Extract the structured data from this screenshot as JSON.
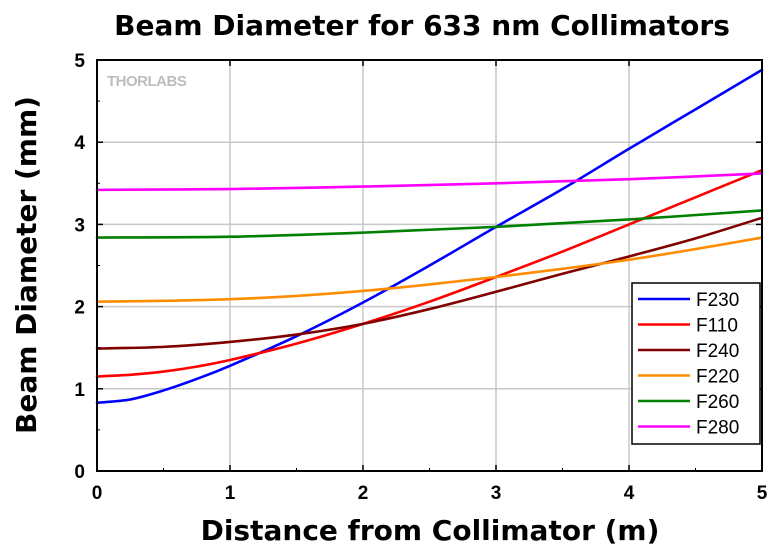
{
  "watermark": "THORLABS",
  "chart_data": {
    "type": "line",
    "title": "Beam Diameter for 633 nm Collimators",
    "xlabel": "Distance from Collimator (m)",
    "ylabel": "Beam Diameter (mm)",
    "xlim": [
      0,
      5
    ],
    "ylim": [
      0,
      5
    ],
    "xticks": [
      "0",
      "1",
      "2",
      "3",
      "4",
      "5"
    ],
    "yticks": [
      "0",
      "1",
      "2",
      "3",
      "4",
      "5"
    ],
    "grid": true,
    "legend_position": "bottom-right",
    "series": [
      {
        "name": "F230",
        "color": "#0000ff",
        "x": [
          0,
          0.25,
          0.5,
          0.75,
          1,
          1.5,
          2,
          2.5,
          3,
          3.5,
          4,
          4.5,
          5
        ],
        "y": [
          0.83,
          0.87,
          0.98,
          1.12,
          1.28,
          1.64,
          2.05,
          2.5,
          2.97,
          3.43,
          3.92,
          4.4,
          4.88
        ]
      },
      {
        "name": "F110",
        "color": "#ff0000",
        "x": [
          0,
          0.25,
          0.5,
          0.75,
          1,
          1.5,
          2,
          2.5,
          3,
          3.5,
          4,
          4.5,
          5
        ],
        "y": [
          1.15,
          1.17,
          1.21,
          1.27,
          1.35,
          1.55,
          1.79,
          2.06,
          2.36,
          2.67,
          3.0,
          3.33,
          3.66
        ]
      },
      {
        "name": "F240",
        "color": "#800000",
        "x": [
          0,
          0.5,
          1,
          1.5,
          2,
          2.5,
          3,
          3.5,
          4,
          4.5,
          5
        ],
        "y": [
          1.49,
          1.51,
          1.57,
          1.66,
          1.79,
          1.97,
          2.18,
          2.4,
          2.61,
          2.83,
          3.08
        ]
      },
      {
        "name": "F220",
        "color": "#ff8c00",
        "x": [
          0,
          0.5,
          1,
          1.5,
          2,
          2.5,
          3,
          3.5,
          4,
          4.5,
          5
        ],
        "y": [
          2.06,
          2.07,
          2.09,
          2.13,
          2.19,
          2.27,
          2.36,
          2.46,
          2.57,
          2.7,
          2.84
        ]
      },
      {
        "name": "F260",
        "color": "#008000",
        "x": [
          0,
          1,
          2,
          3,
          4,
          5
        ],
        "y": [
          2.84,
          2.85,
          2.9,
          2.97,
          3.06,
          3.17
        ]
      },
      {
        "name": "F280",
        "color": "#ff00ff",
        "x": [
          0,
          1,
          2,
          3,
          4,
          5
        ],
        "y": [
          3.42,
          3.43,
          3.46,
          3.5,
          3.55,
          3.62
        ]
      }
    ]
  }
}
